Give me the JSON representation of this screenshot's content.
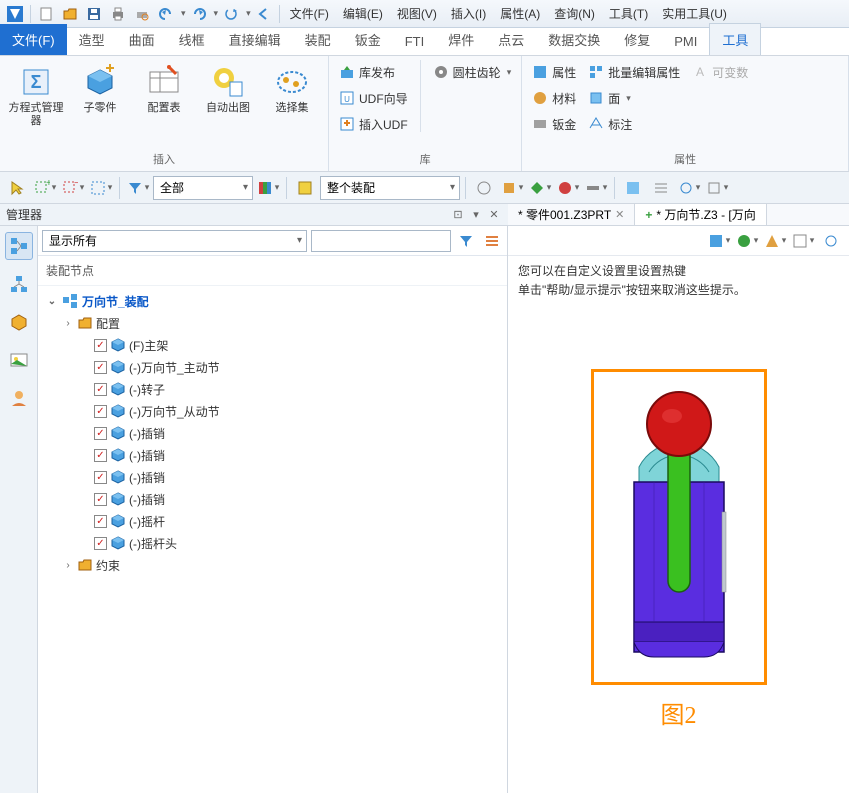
{
  "qat_menus": [
    "文件(F)",
    "编辑(E)",
    "视图(V)",
    "插入(I)",
    "属性(A)",
    "查询(N)",
    "工具(T)",
    "实用工具(U)"
  ],
  "ribbon_tabs": [
    "文件(F)",
    "造型",
    "曲面",
    "线框",
    "直接编辑",
    "装配",
    "钣金",
    "FTI",
    "焊件",
    "点云",
    "数据交换",
    "修复",
    "PMI",
    "工具"
  ],
  "active_tab_index": 0,
  "highlighted_tab_index": 13,
  "ribbon": {
    "group1_label": "插入",
    "group1_items": [
      "方程式管理器",
      "子零件",
      "配置表",
      "自动出图",
      "选择集"
    ],
    "group2_label": "库",
    "group2_items": [
      "库发布",
      "UDF向导",
      "插入UDF"
    ],
    "group2_right": "圆柱齿轮",
    "group3_label": "属性",
    "group3_col1": [
      "属性",
      "材料",
      "钣金"
    ],
    "group3_col2": [
      "批量编辑属性",
      "面",
      "标注"
    ],
    "group3_disabled": "可变数"
  },
  "toolbar2": {
    "filter1": "全部",
    "filter2": "整个装配"
  },
  "manager_title": "管理器",
  "doc_tabs": [
    {
      "label": "* 零件001.Z3PRT",
      "active": false,
      "closable": true
    },
    {
      "label": "* 万向节.Z3 - [万向",
      "active": true,
      "prefix": "+"
    }
  ],
  "tree": {
    "filter_label": "显示所有",
    "section_title": "装配节点",
    "root": "万向节_装配",
    "config_label": "配置",
    "items": [
      "(F)主架",
      "(-)万向节_主动节",
      "(-)转子",
      "(-)万向节_从动节",
      "(-)插销",
      "(-)插销",
      "(-)插销",
      "(-)插销",
      "(-)摇杆",
      "(-)摇杆头"
    ],
    "constraints_label": "约束"
  },
  "viewport": {
    "hint_line1": "您可以在自定义设置里设置热键",
    "hint_line2": "单击\"帮助/显示提示\"按钮来取消这些提示。",
    "figure_label": "图2",
    "frame_color": "#ff8c00",
    "model": {
      "body_color": "#5a2de0",
      "body_stroke": "#1a0a60",
      "sphere_color": "#d01818",
      "sphere_stroke": "#7a0a0a",
      "shaft_color": "#3ac020",
      "shaft_stroke": "#1a6010",
      "collar_color": "#7fd4d8",
      "collar_stroke": "#2a8a90"
    }
  },
  "colors": {
    "accent": "#1f6fd1",
    "orange": "#ff8c00",
    "panel": "#eef3f8"
  }
}
